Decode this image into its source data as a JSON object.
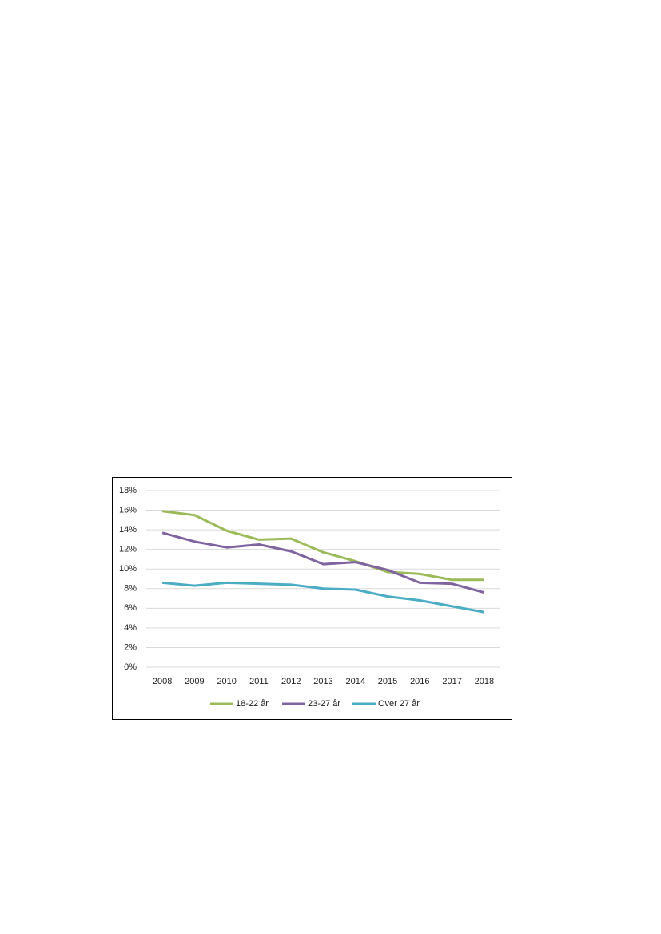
{
  "chart_data": {
    "type": "line",
    "categories": [
      "2008",
      "2009",
      "2010",
      "2011",
      "2012",
      "2013",
      "2014",
      "2015",
      "2016",
      "2017",
      "2018"
    ],
    "series": [
      {
        "name": "18-22 år",
        "color": "#9bbb59",
        "values": [
          15.9,
          15.5,
          13.9,
          13.0,
          13.1,
          11.7,
          10.8,
          9.7,
          9.5,
          8.9,
          8.9
        ]
      },
      {
        "name": "23-27 år",
        "color": "#8064a2",
        "values": [
          13.7,
          12.8,
          12.2,
          12.5,
          11.8,
          10.5,
          10.7,
          9.9,
          8.6,
          8.5,
          7.6
        ]
      },
      {
        "name": "Over 27 år",
        "color": "#4bacc6",
        "values": [
          8.6,
          8.3,
          8.6,
          8.5,
          8.4,
          8.0,
          7.9,
          7.2,
          6.8,
          6.2,
          5.6
        ]
      }
    ],
    "ylim": [
      0,
      18
    ],
    "yticks": [
      {
        "value": 0,
        "label": "0%"
      },
      {
        "value": 2,
        "label": "2%"
      },
      {
        "value": 4,
        "label": "4%"
      },
      {
        "value": 6,
        "label": "6%"
      },
      {
        "value": 8,
        "label": "8%"
      },
      {
        "value": 10,
        "label": "10%"
      },
      {
        "value": 12,
        "label": "12%"
      },
      {
        "value": 14,
        "label": "14%"
      },
      {
        "value": 16,
        "label": "16%"
      },
      {
        "value": 18,
        "label": "18%"
      }
    ],
    "grid": true,
    "legend": "bottom"
  }
}
